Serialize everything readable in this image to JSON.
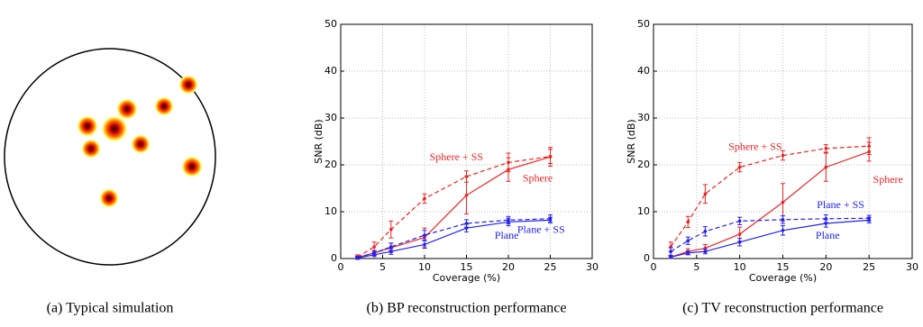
{
  "image_panel": {
    "caption": "(a)  Typical simulation"
  },
  "chart_data": [
    {
      "type": "line",
      "caption": "(b)  BP reconstruction performance",
      "xlabel": "Coverage (%)",
      "ylabel": "SNR (dB)",
      "x": [
        2,
        4,
        6,
        10,
        15,
        20,
        25
      ],
      "xlim": [
        0,
        30
      ],
      "xticks": [
        0,
        5,
        10,
        15,
        20,
        25,
        30
      ],
      "ylim": [
        0,
        50
      ],
      "yticks": [
        0,
        10,
        20,
        30,
        40,
        50
      ],
      "grid": true,
      "series": [
        {
          "name": "Sphere + SS",
          "color": "#ee2222",
          "linestyle": "dashed",
          "values": [
            0.3,
            2.5,
            6.2,
            12.8,
            17.5,
            20.5,
            21.8
          ],
          "errors": [
            0.5,
            1,
            1.8,
            1,
            1.2,
            2,
            1.5
          ]
        },
        {
          "name": "Sphere",
          "color": "#ee2222",
          "linestyle": "solid",
          "values": [
            0.2,
            1.2,
            2.3,
            4.5,
            13.5,
            19,
            21.7
          ],
          "errors": [
            0.3,
            0.5,
            1,
            2,
            4,
            2.5,
            2
          ]
        },
        {
          "name": "Plane + SS",
          "color": "#2222ee",
          "linestyle": "dashed",
          "values": [
            0.2,
            1.2,
            2.5,
            5,
            7.5,
            8.2,
            8.5
          ],
          "errors": [
            0.3,
            0.5,
            0.8,
            1,
            0.8,
            0.8,
            0.8
          ]
        },
        {
          "name": "Plane",
          "color": "#2222ee",
          "linestyle": "solid",
          "values": [
            0.1,
            0.8,
            1.5,
            3,
            6.5,
            7.8,
            8.2
          ],
          "errors": [
            0.2,
            0.4,
            0.6,
            0.8,
            0.8,
            0.8,
            0.6
          ]
        }
      ]
    },
    {
      "type": "line",
      "caption": "(c)  TV reconstruction performance",
      "xlabel": "Coverage (%)",
      "ylabel": "SNR (dB)",
      "x": [
        2,
        4,
        6,
        10,
        15,
        20,
        25
      ],
      "xlim": [
        0,
        30
      ],
      "xticks": [
        0,
        5,
        10,
        15,
        20,
        25,
        30
      ],
      "ylim": [
        0,
        50
      ],
      "yticks": [
        0,
        10,
        20,
        30,
        40,
        50
      ],
      "grid": true,
      "series": [
        {
          "name": "Sphere + SS",
          "color": "#ee2222",
          "linestyle": "dashed",
          "values": [
            2.5,
            7.8,
            13.8,
            19.5,
            22,
            23.5,
            24
          ],
          "errors": [
            1,
            1.2,
            2,
            1,
            1,
            0.8,
            1.8
          ]
        },
        {
          "name": "Sphere",
          "color": "#ee2222",
          "linestyle": "solid",
          "values": [
            0.3,
            1.5,
            2.2,
            5.2,
            12,
            19.5,
            22.8
          ],
          "errors": [
            0.3,
            0.6,
            0.8,
            1.5,
            4,
            3,
            2
          ]
        },
        {
          "name": "Plane + SS",
          "color": "#2222ee",
          "linestyle": "dashed",
          "values": [
            1.5,
            3.8,
            5.8,
            8,
            8.3,
            8.5,
            8.6
          ],
          "errors": [
            0.8,
            0.8,
            1,
            0.8,
            0.8,
            0.8,
            0.6
          ]
        },
        {
          "name": "Plane",
          "color": "#2222ee",
          "linestyle": "solid",
          "values": [
            0.3,
            1.2,
            1.5,
            3.5,
            6,
            7.5,
            8.2
          ],
          "errors": [
            0.2,
            0.4,
            0.5,
            0.8,
            1,
            0.8,
            0.6
          ]
        }
      ]
    }
  ]
}
